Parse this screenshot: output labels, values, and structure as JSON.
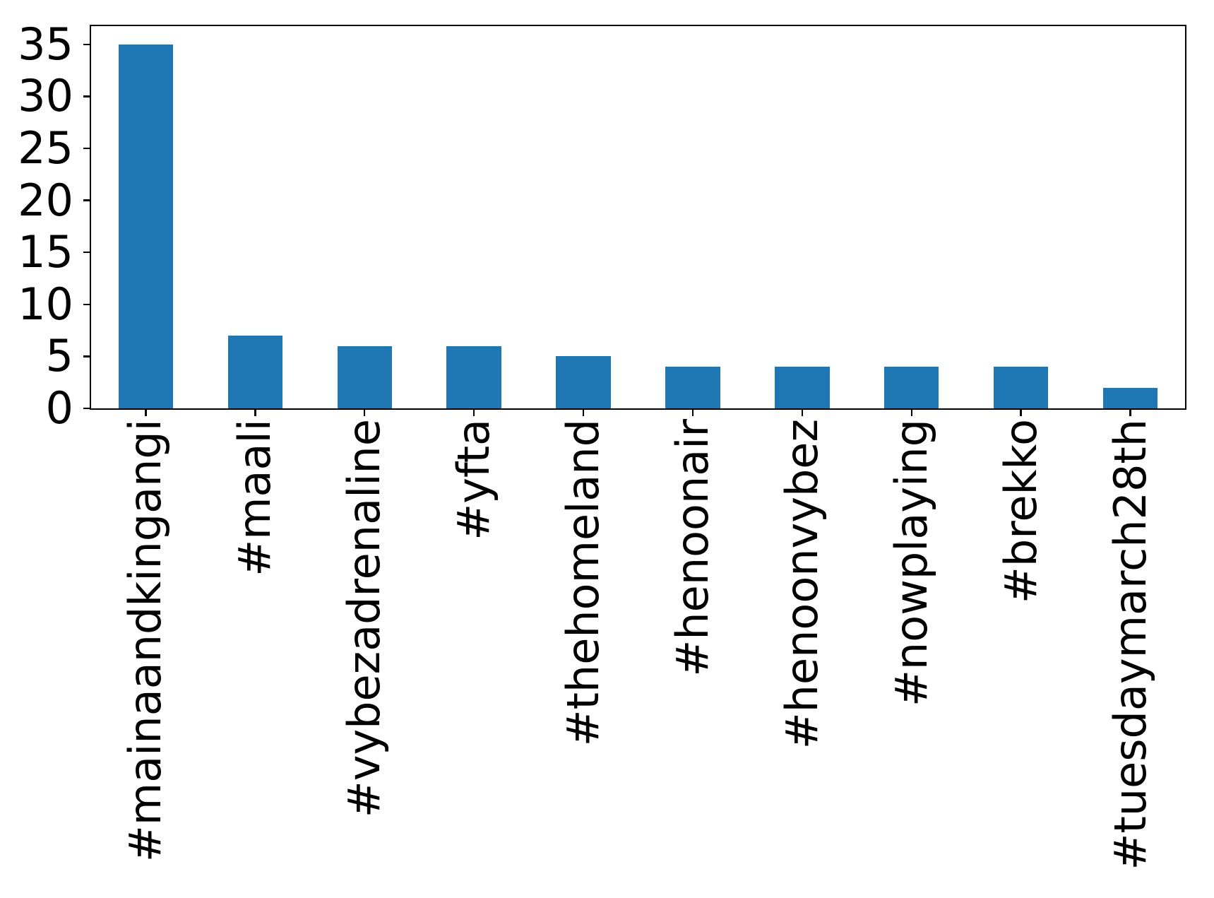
{
  "chart_data": {
    "type": "bar",
    "categories": [
      "#mainaandkingangi",
      "#maali",
      "#vybezadrenaline",
      "#yfta",
      "#thehomeland",
      "#henoonair",
      "#henoonvybez",
      "#nowplaying",
      "#brekko",
      "#tuesdaymarch28th"
    ],
    "values": [
      35,
      7,
      6,
      6,
      5,
      4,
      4,
      4,
      4,
      2
    ],
    "yticks": [
      0,
      5,
      10,
      15,
      20,
      25,
      30,
      35
    ],
    "ylim": [
      0,
      36.75
    ],
    "xtick_rotation": 90,
    "grid": false,
    "legend_position": "none",
    "bar_color": "#1f77b4",
    "axis_color": "#000000",
    "background_color": "#ffffff"
  }
}
